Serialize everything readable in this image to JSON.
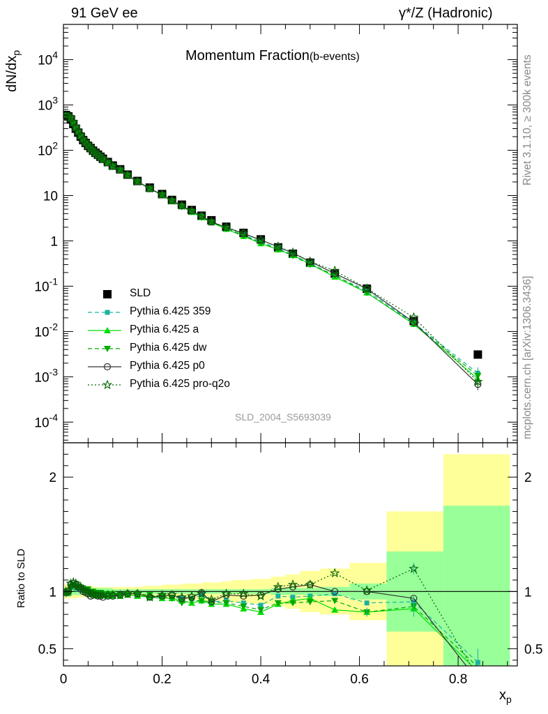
{
  "header": {
    "left": "91 GeV ee",
    "right": "γ*/Z (Hadronic)"
  },
  "plot_title": {
    "main": "Momentum Fraction",
    "sub": "(b-events)"
  },
  "watermark": "SLD_2004_S5693039",
  "side_texts": {
    "rivet": "Rivet 3.1.10, ≥ 300k events",
    "mcplots": "mcplots.cern.ch [arXiv:1306.3436]"
  },
  "legend": [
    {
      "label": "SLD",
      "color": "#000000",
      "marker": "square",
      "line": "none"
    },
    {
      "label": "Pythia 6.425 359",
      "color": "#1ab2a0",
      "marker": "smallsquare",
      "line": "dashed"
    },
    {
      "label": "Pythia 6.425 a",
      "color": "#00dd00",
      "marker": "triangle-up",
      "line": "solid"
    },
    {
      "label": "Pythia 6.425 dw",
      "color": "#00aa00",
      "marker": "triangle-down",
      "line": "dashed"
    },
    {
      "label": "Pythia 6.425 p0",
      "color": "#333333",
      "marker": "circle",
      "line": "solid"
    },
    {
      "label": "Pythia 6.425 pro-q2o",
      "color": "#006600",
      "marker": "star",
      "line": "dotted"
    }
  ],
  "chart_data": [
    {
      "type": "scatter",
      "panel": "main",
      "xlabel": "x",
      "xlabel_sub": "p",
      "ylabel": "dN/dx",
      "ylabel_sub": "p",
      "yscale": "log",
      "ylim": [
        3.5e-05,
        60000
      ],
      "xlim": [
        0,
        0.92
      ],
      "x_ticks": [
        "0",
        "0.2",
        "0.4",
        "0.6",
        "0.8"
      ],
      "y_ticks": [
        "10^-4",
        "10^-3",
        "10^-2",
        "10^-1",
        "1",
        "10",
        "10^2",
        "10^3",
        "10^4"
      ],
      "x": [
        0.005,
        0.01,
        0.015,
        0.02,
        0.025,
        0.03,
        0.035,
        0.04,
        0.045,
        0.05,
        0.055,
        0.06,
        0.065,
        0.07,
        0.075,
        0.08,
        0.09,
        0.1,
        0.115,
        0.13,
        0.15,
        0.175,
        0.2,
        0.22,
        0.24,
        0.26,
        0.28,
        0.3,
        0.33,
        0.365,
        0.4,
        0.435,
        0.465,
        0.5,
        0.55,
        0.615,
        0.71,
        0.84
      ],
      "series": [
        {
          "name": "SLD",
          "values": [
            600,
            560,
            480,
            380,
            300,
            245,
            200,
            168,
            145,
            125,
            112,
            98,
            88,
            80,
            72,
            65,
            55,
            46,
            38,
            29,
            21,
            15,
            10.8,
            8.0,
            6.3,
            4.8,
            3.6,
            2.85,
            2.05,
            1.5,
            1.08,
            0.72,
            0.52,
            0.33,
            0.19,
            0.088,
            0.017,
            0.0031
          ]
        },
        {
          "name": "Pythia 6.425 359",
          "values": [
            590,
            550,
            500,
            395,
            310,
            250,
            205,
            170,
            147,
            126,
            110,
            96,
            86,
            78,
            70,
            63,
            53,
            44,
            37,
            28,
            20.3,
            14.4,
            10.3,
            7.6,
            5.9,
            4.5,
            3.5,
            2.6,
            1.88,
            1.35,
            0.95,
            0.69,
            0.49,
            0.32,
            0.17,
            0.079,
            0.0155,
            0.0012
          ]
        },
        {
          "name": "Pythia 6.425 a",
          "values": [
            595,
            555,
            505,
            400,
            315,
            255,
            208,
            173,
            148,
            126,
            111,
            97,
            86,
            78,
            70,
            63,
            53,
            44,
            36.5,
            28,
            20.2,
            14.3,
            10.2,
            7.5,
            5.8,
            4.3,
            3.3,
            2.55,
            1.82,
            1.27,
            0.88,
            0.64,
            0.48,
            0.31,
            0.16,
            0.072,
            0.0145,
            0.0009
          ]
        },
        {
          "name": "Pythia 6.425 dw",
          "values": [
            590,
            552,
            500,
            398,
            312,
            252,
            206,
            172,
            147,
            127,
            112,
            98,
            87,
            79,
            71,
            64,
            54,
            45,
            37,
            28.5,
            20.6,
            14.5,
            10.4,
            7.5,
            5.7,
            4.4,
            3.3,
            2.6,
            1.85,
            1.3,
            0.9,
            0.65,
            0.47,
            0.3,
            0.175,
            0.072,
            0.0148,
            0.00105
          ]
        },
        {
          "name": "Pythia 6.425 p0",
          "values": [
            595,
            560,
            510,
            405,
            318,
            255,
            205,
            168,
            144,
            123,
            108,
            95,
            85,
            77,
            69,
            62,
            53,
            44,
            37,
            28.5,
            20.5,
            14.2,
            10.4,
            7.8,
            5.9,
            4.6,
            3.55,
            2.6,
            1.98,
            1.45,
            1.05,
            0.74,
            0.54,
            0.35,
            0.19,
            0.088,
            0.016,
            0.00068
          ]
        },
        {
          "name": "Pythia 6.425 pro-q2o",
          "values": [
            600,
            565,
            515,
            410,
            322,
            258,
            208,
            171,
            146,
            125,
            109,
            96,
            86,
            78,
            70,
            63,
            53,
            44.5,
            37,
            28.6,
            20.6,
            14.3,
            10.5,
            7.8,
            6.0,
            4.6,
            3.55,
            2.65,
            2.0,
            1.48,
            1.04,
            0.75,
            0.55,
            0.35,
            0.22,
            0.089,
            0.0205,
            0.00078
          ]
        }
      ]
    },
    {
      "type": "line",
      "panel": "ratio",
      "ylabel": "Ratio to SLD",
      "xlabel": "x",
      "xlabel_sub": "p",
      "ylim": [
        0.35,
        2.3
      ],
      "xlim": [
        0,
        0.92
      ],
      "y_ticks": [
        "0.5",
        "1",
        "2"
      ],
      "x_ticks": [
        "0",
        "0.2",
        "0.4",
        "0.6",
        "0.8"
      ],
      "x": [
        0.005,
        0.01,
        0.015,
        0.02,
        0.025,
        0.03,
        0.035,
        0.04,
        0.045,
        0.05,
        0.055,
        0.06,
        0.065,
        0.07,
        0.075,
        0.08,
        0.09,
        0.1,
        0.115,
        0.13,
        0.15,
        0.175,
        0.2,
        0.22,
        0.24,
        0.26,
        0.28,
        0.3,
        0.33,
        0.365,
        0.4,
        0.435,
        0.465,
        0.5,
        0.55,
        0.615,
        0.71,
        0.84
      ],
      "bin_edges": [
        0,
        0.01,
        0.02,
        0.03,
        0.04,
        0.05,
        0.06,
        0.07,
        0.08,
        0.09,
        0.1,
        0.12,
        0.14,
        0.16,
        0.18,
        0.2,
        0.22,
        0.24,
        0.26,
        0.28,
        0.3,
        0.32,
        0.34,
        0.38,
        0.42,
        0.45,
        0.48,
        0.52,
        0.58,
        0.655,
        0.77,
        0.905
      ],
      "stat_band_rel": [
        0.03,
        0.03,
        0.03,
        0.03,
        0.03,
        0.03,
        0.03,
        0.03,
        0.03,
        0.03,
        0.02,
        0.02,
        0.02,
        0.02,
        0.02,
        0.02,
        0.02,
        0.02,
        0.02,
        0.02,
        0.02,
        0.02,
        0.02,
        0.02,
        0.03,
        0.03,
        0.03,
        0.04,
        0.07,
        0.35,
        0.75
      ],
      "total_band_rel": [
        0.06,
        0.06,
        0.06,
        0.05,
        0.05,
        0.05,
        0.04,
        0.04,
        0.04,
        0.04,
        0.04,
        0.04,
        0.04,
        0.05,
        0.05,
        0.06,
        0.06,
        0.07,
        0.07,
        0.08,
        0.08,
        0.09,
        0.1,
        0.11,
        0.13,
        0.15,
        0.18,
        0.2,
        0.25,
        0.7,
        1.2
      ],
      "series": [
        {
          "name": "Pythia 6.425 359",
          "values": [
            0.99,
            0.98,
            1.04,
            1.04,
            1.03,
            1.02,
            1.02,
            1.01,
            1.01,
            1.01,
            0.98,
            0.98,
            0.98,
            0.97,
            0.97,
            0.97,
            0.96,
            0.96,
            0.97,
            0.97,
            0.97,
            0.96,
            0.95,
            0.95,
            0.94,
            0.94,
            0.97,
            0.91,
            0.92,
            0.9,
            0.88,
            0.96,
            0.95,
            0.96,
            0.98,
            0.9,
            0.91,
            0.38
          ]
        },
        {
          "name": "Pythia 6.425 a",
          "values": [
            0.99,
            0.99,
            1.05,
            1.05,
            1.05,
            1.04,
            1.04,
            1.03,
            1.02,
            1.01,
            0.99,
            0.99,
            0.98,
            0.98,
            0.97,
            0.97,
            0.96,
            0.96,
            0.96,
            0.97,
            0.96,
            0.95,
            0.94,
            0.94,
            0.92,
            0.9,
            0.92,
            0.89,
            0.89,
            0.85,
            0.82,
            0.89,
            0.92,
            0.94,
            0.84,
            0.82,
            0.85,
            0.3
          ]
        },
        {
          "name": "Pythia 6.425 dw",
          "values": [
            0.98,
            0.99,
            1.04,
            1.05,
            1.04,
            1.03,
            1.03,
            1.02,
            1.01,
            1.02,
            1.0,
            1.0,
            0.99,
            0.99,
            0.99,
            0.98,
            0.98,
            0.98,
            0.97,
            0.98,
            0.98,
            0.97,
            0.96,
            0.94,
            0.9,
            0.92,
            0.92,
            0.91,
            0.9,
            0.87,
            0.84,
            0.9,
            0.9,
            0.91,
            0.92,
            0.82,
            0.87,
            0.34
          ]
        },
        {
          "name": "Pythia 6.425 p0",
          "values": [
            0.99,
            1.0,
            1.06,
            1.07,
            1.06,
            1.04,
            1.02,
            1.0,
            0.99,
            0.98,
            0.96,
            0.97,
            0.97,
            0.96,
            0.96,
            0.95,
            0.96,
            0.96,
            0.97,
            0.98,
            0.98,
            0.95,
            0.96,
            0.97,
            0.94,
            0.95,
            0.99,
            0.91,
            0.97,
            0.96,
            0.97,
            1.02,
            1.04,
            1.06,
            1.0,
            1.0,
            0.94,
            0.22
          ]
        },
        {
          "name": "Pythia 6.425 pro-q2o",
          "values": [
            1.0,
            1.01,
            1.07,
            1.08,
            1.07,
            1.05,
            1.04,
            1.02,
            1.01,
            1.0,
            0.98,
            0.98,
            0.97,
            0.97,
            0.97,
            0.97,
            0.97,
            0.97,
            0.97,
            0.98,
            0.98,
            0.95,
            0.97,
            0.97,
            0.95,
            0.96,
            0.98,
            0.93,
            0.98,
            0.98,
            0.96,
            1.04,
            1.06,
            1.06,
            1.16,
            1.01,
            1.2,
            0.25
          ]
        }
      ]
    }
  ]
}
